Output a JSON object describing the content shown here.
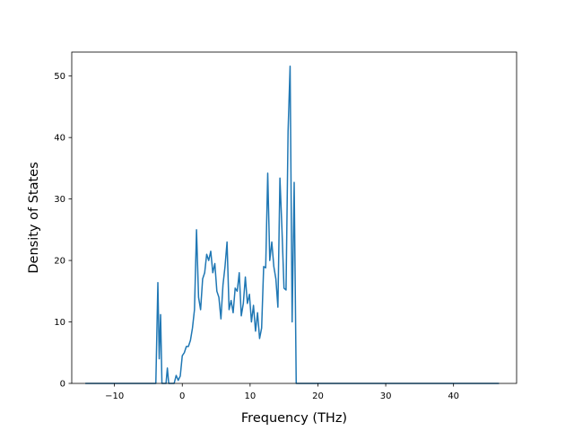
{
  "chart_data": {
    "type": "line",
    "title": "",
    "xlabel": "Frequency (THz)",
    "ylabel": "Density of States",
    "xlim": [
      -16.3,
      49.3
    ],
    "ylim": [
      0,
      53.9
    ],
    "xticks": [
      -10,
      0,
      10,
      20,
      30,
      40
    ],
    "yticks": [
      0,
      10,
      20,
      30,
      40,
      50
    ],
    "grid": false,
    "legend": "none",
    "color": "#1f77b4",
    "series": [
      {
        "x": [
          -14.3,
          -10,
          -5,
          -4.2,
          -3.9,
          -3.6,
          -3.4,
          -3.2,
          -3.0,
          -2.7,
          -2.4,
          -2.2,
          -2.0,
          -1.8,
          -1.5,
          -1.2,
          -0.9,
          -0.6,
          -0.3,
          0.0,
          0.3,
          0.6,
          0.9,
          1.2,
          1.5,
          1.8,
          2.1,
          2.4,
          2.7,
          3.0,
          3.3,
          3.6,
          3.9,
          4.2,
          4.5,
          4.8,
          5.1,
          5.4,
          5.7,
          6.0,
          6.3,
          6.6,
          6.9,
          7.2,
          7.5,
          7.8,
          8.1,
          8.4,
          8.7,
          9.0,
          9.3,
          9.6,
          9.9,
          10.2,
          10.5,
          10.8,
          11.1,
          11.4,
          11.7,
          12.0,
          12.3,
          12.6,
          12.9,
          13.2,
          13.5,
          13.8,
          14.1,
          14.4,
          14.7,
          15.0,
          15.3,
          15.6,
          15.9,
          16.2,
          16.5,
          16.8,
          17.1,
          17.4,
          17.7,
          18.0,
          18.3,
          25,
          35,
          46.7
        ],
        "y": [
          0,
          0,
          0,
          0,
          0,
          16.4,
          4,
          11.2,
          0,
          0,
          0,
          2.5,
          0,
          0,
          0,
          0,
          1.3,
          0.5,
          1.2,
          4.5,
          5,
          6,
          6,
          7,
          9,
          12,
          25,
          14,
          12,
          17,
          18,
          21,
          20,
          21.5,
          18,
          19.5,
          15,
          14,
          10.5,
          16,
          19,
          23,
          12,
          13.5,
          11.5,
          15.5,
          15,
          18,
          11,
          13,
          17.3,
          13,
          14.5,
          10,
          12.7,
          8.5,
          11.5,
          7.3,
          9,
          19,
          18.8,
          34.2,
          20,
          23,
          19,
          17,
          12.4,
          33.4,
          25,
          15.5,
          15.2,
          41,
          51.6,
          10,
          32.7,
          0,
          0,
          0,
          0,
          0,
          0,
          0,
          0,
          0
        ]
      }
    ]
  }
}
